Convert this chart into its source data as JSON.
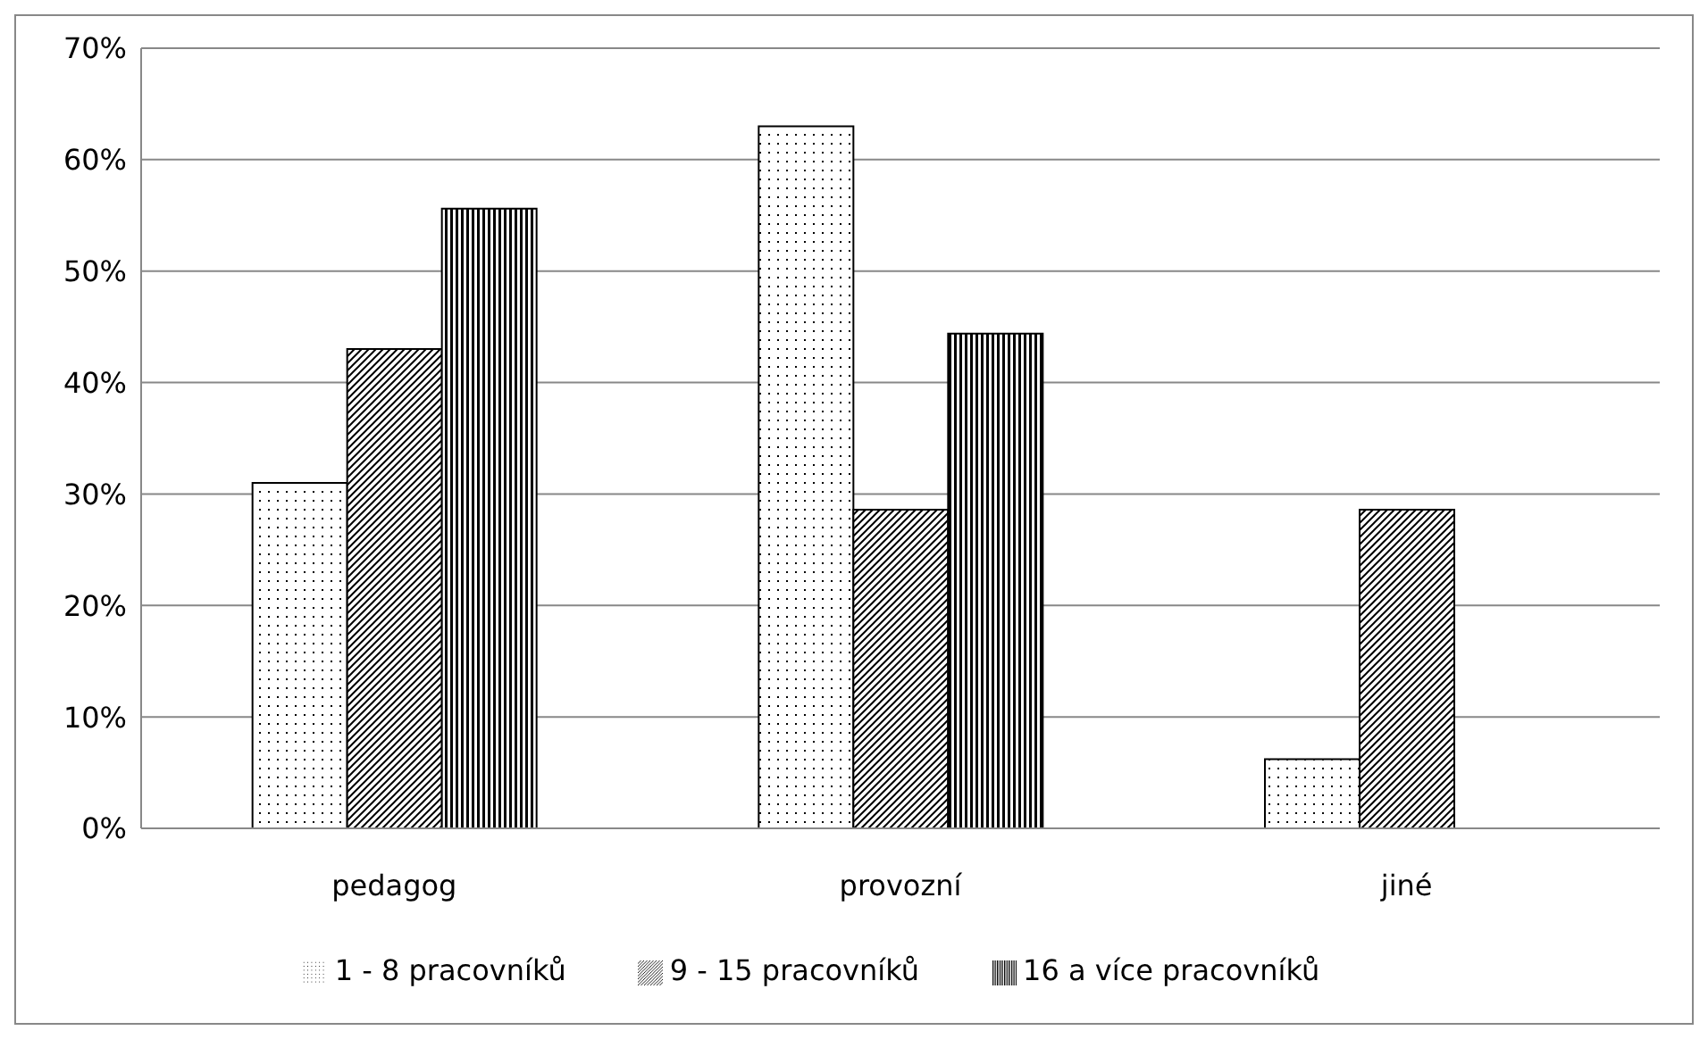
{
  "chart_data": {
    "type": "bar",
    "categories": [
      "pedagog",
      "provozní",
      "jiné"
    ],
    "series": [
      {
        "name": "1 - 8 pracovníků",
        "color": "#000000",
        "values": [
          31,
          63,
          6.2
        ]
      },
      {
        "name": "9 - 15 pracovníků",
        "color": "#000000",
        "values": [
          43,
          28.6,
          28.6
        ]
      },
      {
        "name": "16 a více pracovníků",
        "color": "#000000",
        "values": [
          55.6,
          44.4,
          0
        ]
      }
    ],
    "ylim": [
      0,
      70
    ],
    "yticks": [
      {
        "value": 0,
        "label": "0%"
      },
      {
        "value": 10,
        "label": "10%"
      },
      {
        "value": 20,
        "label": "20%"
      },
      {
        "value": 30,
        "label": "30%"
      },
      {
        "value": 40,
        "label": "40%"
      },
      {
        "value": 50,
        "label": "50%"
      },
      {
        "value": 60,
        "label": "60%"
      },
      {
        "value": 70,
        "label": "70%"
      }
    ],
    "grid": "y",
    "legend": "bottom"
  }
}
